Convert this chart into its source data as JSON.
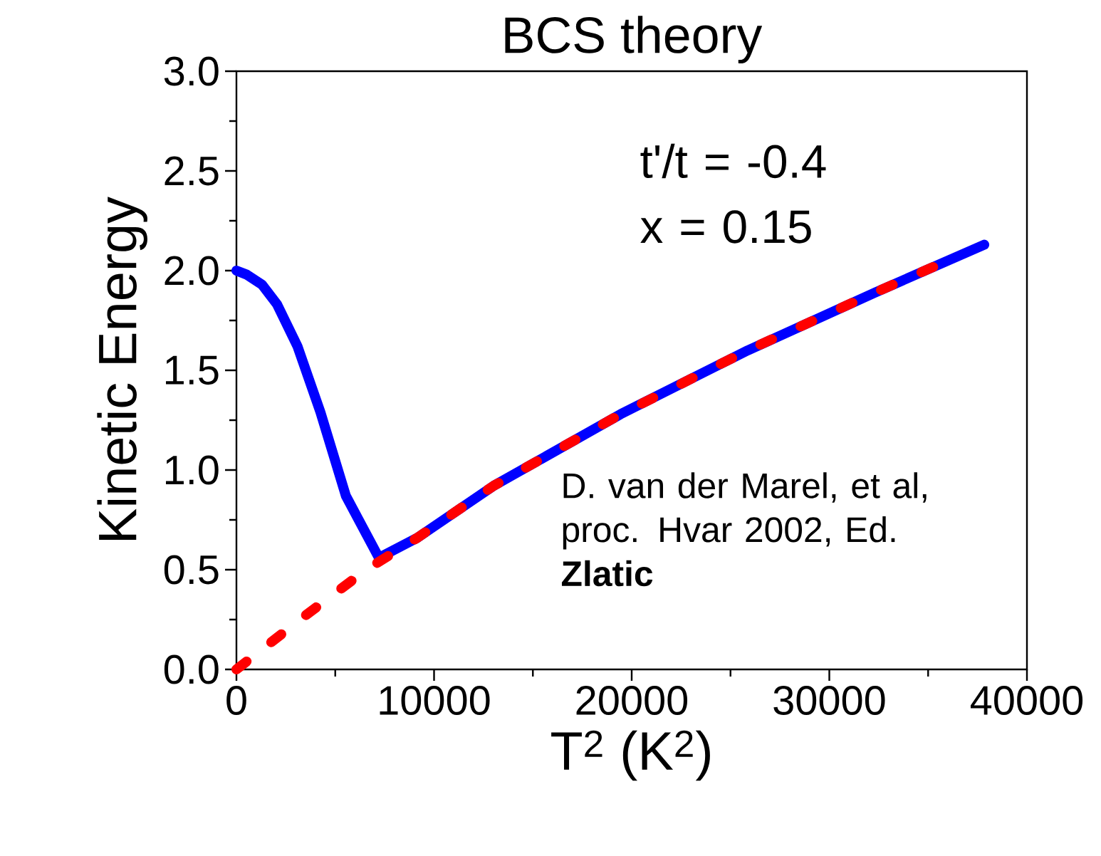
{
  "chart_data": {
    "type": "line",
    "title": "BCS theory",
    "xlabel": "T$^{2}$ (K$^{2}$)",
    "ylabel": "Kinetic Energy",
    "xlim": [
      0,
      40000
    ],
    "xticks": [
      0,
      10000,
      20000,
      30000,
      40000
    ],
    "ylim": [
      0,
      3
    ],
    "yticks": [
      {
        "value": 0,
        "label": "0.0"
      },
      {
        "value": 0.5,
        "label": "0.5"
      },
      {
        "value": 1,
        "label": "1.0"
      },
      {
        "value": 1.5,
        "label": "1.5"
      },
      {
        "value": 2,
        "label": "2.0"
      },
      {
        "value": 2.5,
        "label": "2.5"
      },
      {
        "value": 3,
        "label": "3.0"
      }
    ],
    "grid": false,
    "marker": "none",
    "annotations": [
      "t'/t = -0.4",
      "x = 0.15",
      "D. van der Marel,  et al, proc. Hvar 2002, Ed. **Zlatic**"
    ],
    "series": [
      {
        "color": "#0000ff",
        "line_style": "solid",
        "x": [
          0,
          520,
          1290,
          2060,
          3090,
          4250,
          5540,
          7210,
          9150,
          13000,
          19440,
          25870,
          32310,
          37840
        ],
        "values": [
          2.0,
          1.98,
          1.93,
          1.83,
          1.62,
          1.29,
          0.87,
          0.56,
          0.66,
          0.92,
          1.28,
          1.6,
          1.89,
          2.13
        ]
      },
      {
        "color": "#ff0000",
        "line_style": "dashed",
        "x": [
          0,
          3350,
          6570,
          9150,
          13000,
          19440,
          25870,
          32310,
          35530
        ],
        "values": [
          0.0,
          0.26,
          0.5,
          0.66,
          0.92,
          1.28,
          1.6,
          1.89,
          2.03
        ]
      }
    ]
  }
}
